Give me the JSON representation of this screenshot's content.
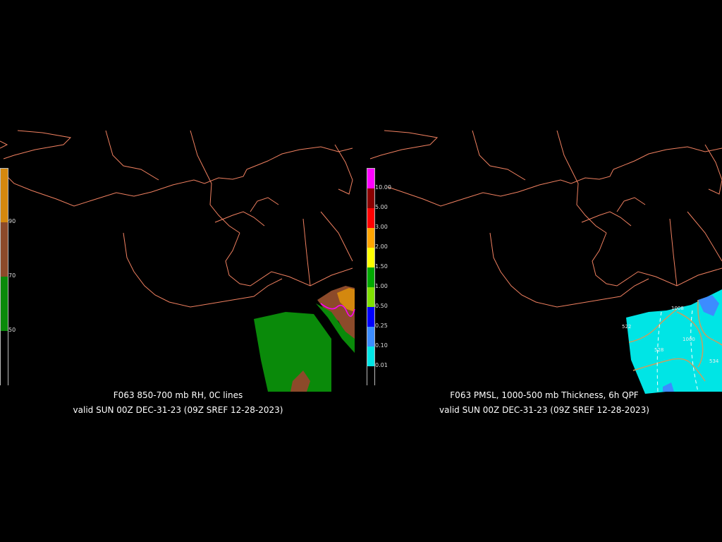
{
  "panels": [
    {
      "title": "F063 850-700 mb RH, 0C lines",
      "valid": "valid SUN 00Z DEC-31-23 (09Z SREF 12-28-2023)",
      "legend": {
        "ticks": [
          "90",
          "70",
          "50"
        ],
        "colors": [
          "#d4880e",
          "#8c4a2a",
          "#0a8a0a",
          "#000000"
        ]
      }
    },
    {
      "title": "F063 PMSL, 1000-500 mb Thickness, 6h QPF",
      "valid": "valid SUN 00Z DEC-31-23 (09Z SREF 12-28-2023)",
      "legend": {
        "ticks": [
          "10.00",
          "5.00",
          "3.00",
          "2.00",
          "1.50",
          "1.00",
          "0.50",
          "0.25",
          "0.10",
          "0.01"
        ],
        "colors": [
          "#ff00ff",
          "#8b0000",
          "#ff0000",
          "#ffa500",
          "#ffff00",
          "#00aa00",
          "#80e000",
          "#0000ff",
          "#3c8cff",
          "#00e5e5",
          "#000000"
        ]
      },
      "contour_labels": [
        "1008",
        "522",
        "528",
        "1000",
        "534"
      ]
    }
  ],
  "colors": {
    "coastline": "#f08060",
    "background": "#000000",
    "contour": "#c8a060"
  }
}
